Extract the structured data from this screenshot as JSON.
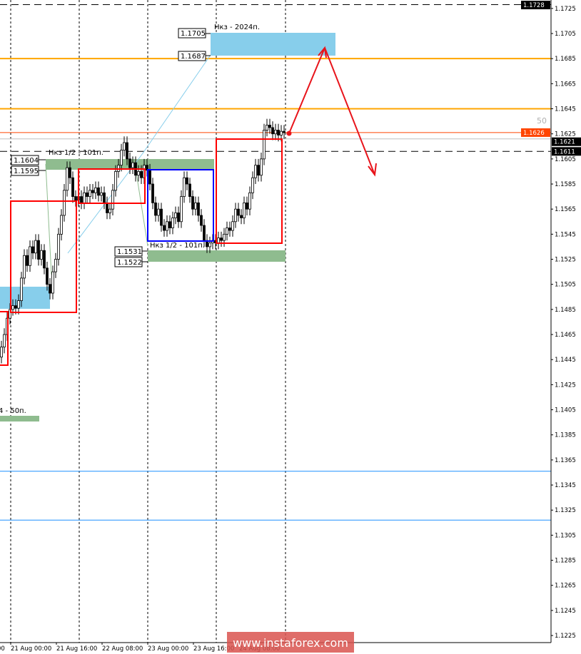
{
  "chart_data": {
    "type": "candlestick",
    "symbol_timeframe": "H1",
    "x_tick_labels": [
      "21 Aug 00:00",
      "21 Aug 16:00",
      "22 Aug 08:00",
      "23 Aug 00:00",
      "23 Aug 16:00",
      "24 Aug 08:00"
    ],
    "first_tick_label_partial": "00",
    "y_tick_labels": [
      "1.1725",
      "1.1705",
      "1.1685",
      "1.1665",
      "1.1645",
      "1.1625",
      "1.1605",
      "1.1585",
      "1.1565",
      "1.1545",
      "1.1525",
      "1.1505",
      "1.1485",
      "1.1465",
      "1.1445",
      "1.1425",
      "1.1405",
      "1.1385",
      "1.1365",
      "1.1345",
      "1.1325",
      "1.1305",
      "1.1285",
      "1.1265",
      "1.1245",
      "1.1225"
    ],
    "ylim": [
      1.122,
      1.173
    ],
    "grid": "vertical dashed day separators",
    "closes": [
      1.1455,
      1.1465,
      1.1478,
      1.1485,
      1.1488,
      1.1486,
      1.1492,
      1.151,
      1.1528,
      1.152,
      1.1535,
      1.153,
      1.154,
      1.1525,
      1.1532,
      1.1518,
      1.1505,
      1.1498,
      1.1515,
      1.1525,
      1.1545,
      1.156,
      1.158,
      1.1598,
      1.159,
      1.1575,
      1.1572,
      1.1575,
      1.157,
      1.1578,
      1.1575,
      1.158,
      1.1578,
      1.1582,
      1.1576,
      1.1578,
      1.157,
      1.1562,
      1.1565,
      1.158,
      1.1595,
      1.16,
      1.1612,
      1.1618,
      1.1605,
      1.1598,
      1.1602,
      1.1592,
      1.1595,
      1.159,
      1.16,
      1.1596,
      1.1585,
      1.157,
      1.156,
      1.1565,
      1.1552,
      1.1548,
      1.1555,
      1.155,
      1.1558,
      1.1562,
      1.1555,
      1.1575,
      1.159,
      1.1585,
      1.1575,
      1.1565,
      1.157,
      1.156,
      1.1552,
      1.154,
      1.1535,
      1.1538,
      1.154,
      1.1538,
      1.1542,
      1.154,
      1.1545,
      1.155,
      1.1548,
      1.1555,
      1.1565,
      1.156,
      1.1558,
      1.157,
      1.1565,
      1.1578,
      1.159,
      1.16,
      1.1592,
      1.1605,
      1.1628,
      1.1632,
      1.163,
      1.1625,
      1.1628,
      1.1624,
      1.1627,
      1.1626
    ],
    "price_labels": {
      "top": "1.1728",
      "ask": "1.1626",
      "bid": "1.1621",
      "level": "1.1611"
    },
    "spread_text": "50",
    "horizontal_levels": [
      {
        "price": 1.1728,
        "style": "dashed",
        "color": "#000000"
      },
      {
        "price": 1.1611,
        "style": "dashed",
        "color": "#000000"
      },
      {
        "price": 1.1685,
        "style": "solid",
        "color": "#FFA500"
      },
      {
        "price": 1.1645,
        "style": "solid",
        "color": "#FFA500"
      },
      {
        "price": 1.1356,
        "style": "solid",
        "color": "#1E90FF"
      },
      {
        "price": 1.1317,
        "style": "solid",
        "color": "#1E90FF"
      },
      {
        "price": 1.1621,
        "style": "solid",
        "color": "#C0C0C0"
      },
      {
        "price": 1.1626,
        "style": "solid",
        "color": "#FF4500"
      }
    ],
    "zones": [
      {
        "name": "Нкз - 2024п.",
        "top": "1.1705",
        "bottom": "1.1687",
        "color": "#87CEEB"
      },
      {
        "name": "Нкз 1/2 - 101п.",
        "top": "1.1604",
        "bottom": "1.1595",
        "color": "#8FBC8F"
      },
      {
        "name": "Нкз 1/2 - 101п.",
        "top": "1.1531",
        "bottom": "1.1522",
        "color": "#8FBC8F"
      },
      {
        "name": "4 - 50п.",
        "color": "#8FBC8F"
      }
    ],
    "colors": {
      "box_red": "#FF0000",
      "box_blue": "#0000FF",
      "arrow": "#E8141B"
    }
  },
  "watermark": "www.instaforex.com"
}
